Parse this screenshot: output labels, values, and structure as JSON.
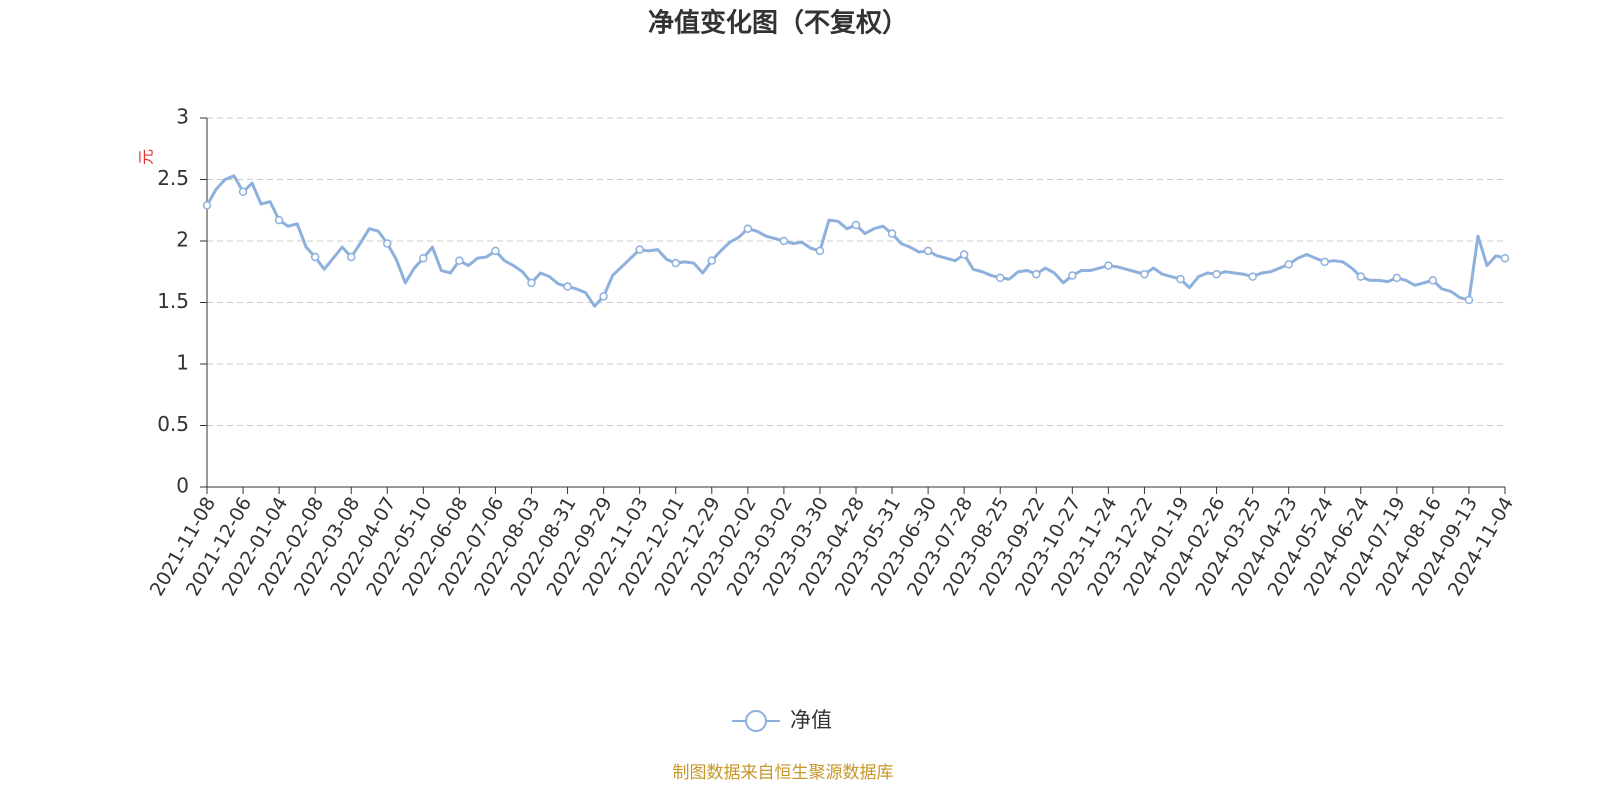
{
  "chart_data": {
    "type": "line",
    "title": "净值变化图（不复权）",
    "y_label": "元",
    "source": "制图数据来自恒生聚源数据库",
    "categories": [
      "2021-11-08",
      null,
      null,
      null,
      "2021-12-06",
      null,
      null,
      null,
      "2022-01-04",
      null,
      null,
      null,
      "2022-02-08",
      null,
      null,
      null,
      "2022-03-08",
      null,
      null,
      null,
      "2022-04-07",
      null,
      null,
      null,
      "2022-05-10",
      null,
      null,
      null,
      "2022-06-08",
      null,
      null,
      null,
      "2022-07-06",
      null,
      null,
      null,
      "2022-08-03",
      null,
      null,
      null,
      "2022-08-31",
      null,
      null,
      null,
      "2022-09-29",
      null,
      null,
      null,
      "2022-11-03",
      null,
      null,
      null,
      "2022-12-01",
      null,
      null,
      null,
      "2022-12-29",
      null,
      null,
      null,
      "2023-02-02",
      null,
      null,
      null,
      "2023-03-02",
      null,
      null,
      null,
      "2023-03-30",
      null,
      null,
      null,
      "2023-04-28",
      null,
      null,
      null,
      "2023-05-31",
      null,
      null,
      null,
      "2023-06-30",
      null,
      null,
      null,
      "2023-07-28",
      null,
      null,
      null,
      "2023-08-25",
      null,
      null,
      null,
      "2023-09-22",
      null,
      null,
      null,
      "2023-10-27",
      null,
      null,
      null,
      "2023-11-24",
      null,
      null,
      null,
      "2023-12-22",
      null,
      null,
      null,
      "2024-01-19",
      null,
      null,
      null,
      "2024-02-26",
      null,
      null,
      null,
      "2024-03-25",
      null,
      null,
      null,
      "2024-04-23",
      null,
      null,
      null,
      "2024-05-24",
      null,
      null,
      null,
      "2024-06-24",
      null,
      null,
      null,
      "2024-07-19",
      null,
      null,
      null,
      "2024-08-16",
      null,
      null,
      null,
      "2024-09-13",
      null,
      null,
      null,
      "2024-11-04"
    ],
    "series": [
      {
        "name": "净值",
        "color": "#8eb0dc",
        "values": [
          2.29,
          2.42,
          2.5,
          2.53,
          2.4,
          2.47,
          2.3,
          2.32,
          2.17,
          2.12,
          2.14,
          1.95,
          1.87,
          1.77,
          1.86,
          1.95,
          1.87,
          1.98,
          2.1,
          2.08,
          1.98,
          1.85,
          1.66,
          1.78,
          1.86,
          1.95,
          1.76,
          1.74,
          1.84,
          1.8,
          1.86,
          1.87,
          1.92,
          1.84,
          1.8,
          1.75,
          1.66,
          1.74,
          1.71,
          1.65,
          1.63,
          1.61,
          1.58,
          1.47,
          1.55,
          1.72,
          1.79,
          1.86,
          1.93,
          1.92,
          1.93,
          1.85,
          1.82,
          1.83,
          1.82,
          1.74,
          1.84,
          1.92,
          1.99,
          2.03,
          2.1,
          2.08,
          2.04,
          2.02,
          2.0,
          1.98,
          1.99,
          1.94,
          1.92,
          2.17,
          2.16,
          2.1,
          2.13,
          2.06,
          2.1,
          2.12,
          2.06,
          1.98,
          1.95,
          1.91,
          1.92,
          1.88,
          1.86,
          1.84,
          1.89,
          1.77,
          1.75,
          1.72,
          1.7,
          1.69,
          1.75,
          1.76,
          1.73,
          1.78,
          1.74,
          1.66,
          1.72,
          1.76,
          1.76,
          1.78,
          1.8,
          1.79,
          1.77,
          1.75,
          1.73,
          1.78,
          1.73,
          1.71,
          1.69,
          1.62,
          1.71,
          1.74,
          1.73,
          1.75,
          1.74,
          1.73,
          1.71,
          1.74,
          1.75,
          1.78,
          1.81,
          1.86,
          1.89,
          1.86,
          1.83,
          1.84,
          1.83,
          1.78,
          1.71,
          1.68,
          1.68,
          1.67,
          1.7,
          1.68,
          1.64,
          1.66,
          1.68,
          1.61,
          1.59,
          1.54,
          1.52,
          2.04,
          1.8,
          1.88,
          1.86
        ]
      }
    ],
    "ylim": [
      0,
      3
    ],
    "yticks": [
      0,
      0.5,
      1,
      1.5,
      2,
      2.5,
      3
    ],
    "grid": true
  }
}
